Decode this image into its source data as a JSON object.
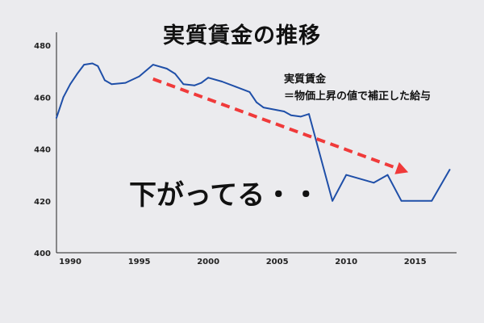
{
  "title": "実質賃金の推移",
  "annotation": {
    "line1": "実質賃金",
    "line2": "＝物価上昇の値で補正した給与"
  },
  "caption": "下がってる・・",
  "chart_data": {
    "type": "line",
    "title": "実質賃金の推移",
    "xlabel": "",
    "ylabel": "",
    "xlim": [
      1989,
      2018
    ],
    "ylim": [
      400,
      485
    ],
    "grid": false,
    "x_ticks": [
      1990,
      1995,
      2000,
      2005,
      2010,
      2015
    ],
    "y_ticks": [
      400,
      420,
      440,
      460,
      480
    ],
    "series": [
      {
        "color": "#1f4fa8",
        "points": [
          [
            1989.0,
            452
          ],
          [
            1989.5,
            460
          ],
          [
            1990.0,
            465
          ],
          [
            1990.5,
            469
          ],
          [
            1991.0,
            472.5
          ],
          [
            1991.6,
            473
          ],
          [
            1992.0,
            472
          ],
          [
            1992.5,
            466.5
          ],
          [
            1993.0,
            465
          ],
          [
            1994.0,
            465.5
          ],
          [
            1995.0,
            468
          ],
          [
            1996.0,
            472.5
          ],
          [
            1997.0,
            471
          ],
          [
            1997.6,
            469
          ],
          [
            1998.2,
            465
          ],
          [
            1999.0,
            464.5
          ],
          [
            1999.5,
            465.5
          ],
          [
            2000.0,
            467.5
          ],
          [
            2001.0,
            466
          ],
          [
            2002.0,
            464
          ],
          [
            2003.0,
            462
          ],
          [
            2003.5,
            458
          ],
          [
            2004.0,
            456
          ],
          [
            2005.0,
            455
          ],
          [
            2005.5,
            454.5
          ],
          [
            2006.0,
            453
          ],
          [
            2006.7,
            452.5
          ],
          [
            2007.3,
            453.5
          ],
          [
            2009.0,
            420
          ],
          [
            2010.0,
            430
          ],
          [
            2012.0,
            427
          ],
          [
            2013.0,
            430
          ],
          [
            2014.0,
            420
          ],
          [
            2016.2,
            420
          ],
          [
            2017.5,
            432
          ]
        ]
      }
    ],
    "trend_arrow": {
      "color": "#f03a3a",
      "from": [
        1996.0,
        467
      ],
      "to": [
        2014.5,
        431
      ]
    }
  }
}
